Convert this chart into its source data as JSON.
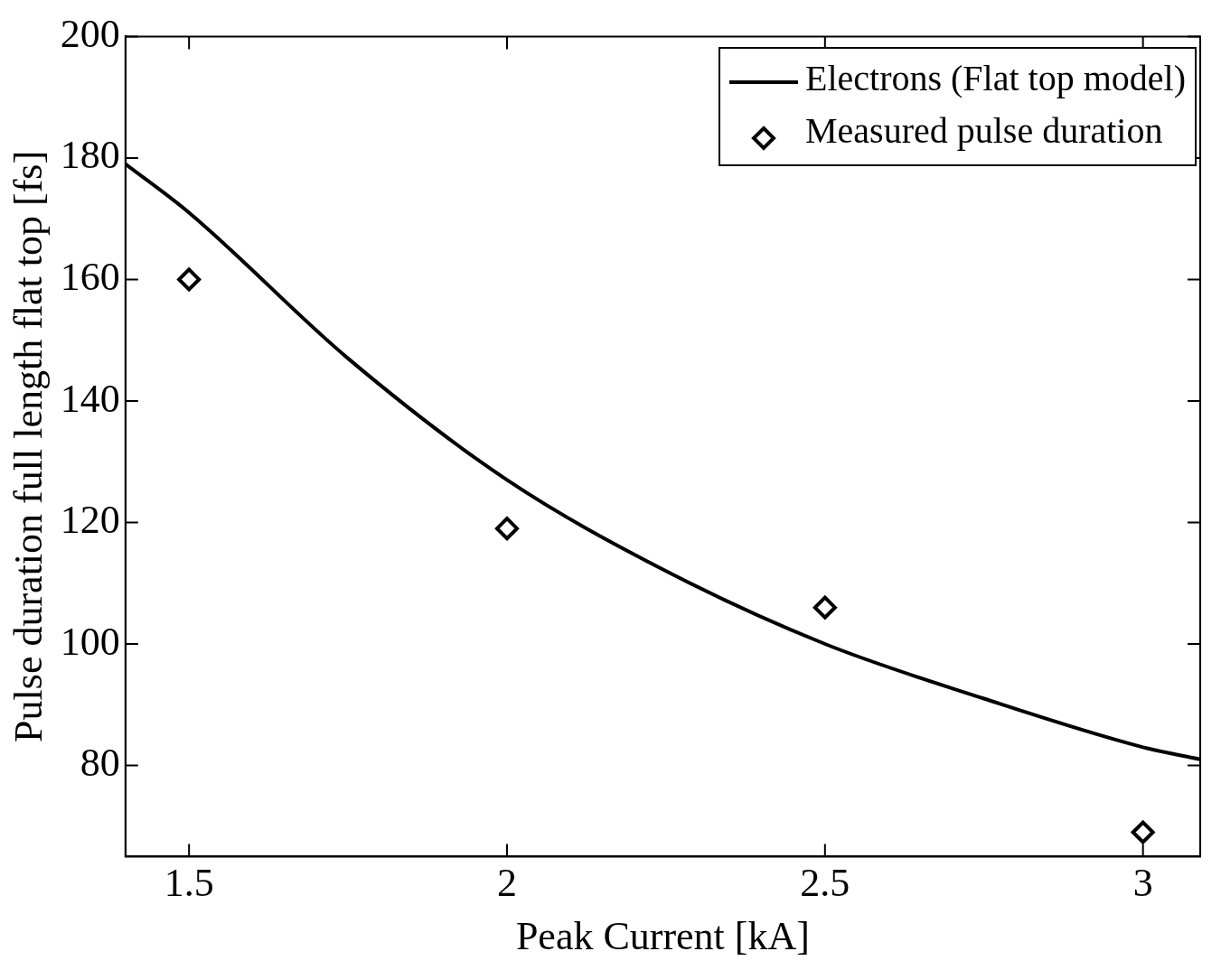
{
  "chart_data": {
    "type": "line",
    "xlabel": "Peak Current [kA]",
    "ylabel": "Pulse duration full length flat top [fs]",
    "xlim": [
      1.4,
      3.09
    ],
    "ylim": [
      65,
      200
    ],
    "xticks": [
      1.5,
      2,
      2.5,
      3
    ],
    "yticks": [
      80,
      100,
      120,
      140,
      160,
      180,
      200
    ],
    "grid": false,
    "legend": "top right",
    "series": [
      {
        "name": "Electrons (Flat top model)",
        "type": "line",
        "color": "#000000",
        "line_style": "solid",
        "marker": "none",
        "x": [
          1.4,
          1.5,
          1.75,
          2,
          2.25,
          2.5,
          2.75,
          3,
          3.09
        ],
        "values": [
          179,
          171,
          147,
          127,
          112,
          100,
          91,
          83,
          81
        ]
      },
      {
        "name": "Measured pulse duration",
        "type": "scatter",
        "color": "#000000",
        "marker": "diamond",
        "x": [
          1.5,
          2,
          2.5,
          3
        ],
        "values": [
          160,
          119,
          106,
          69
        ]
      }
    ]
  }
}
